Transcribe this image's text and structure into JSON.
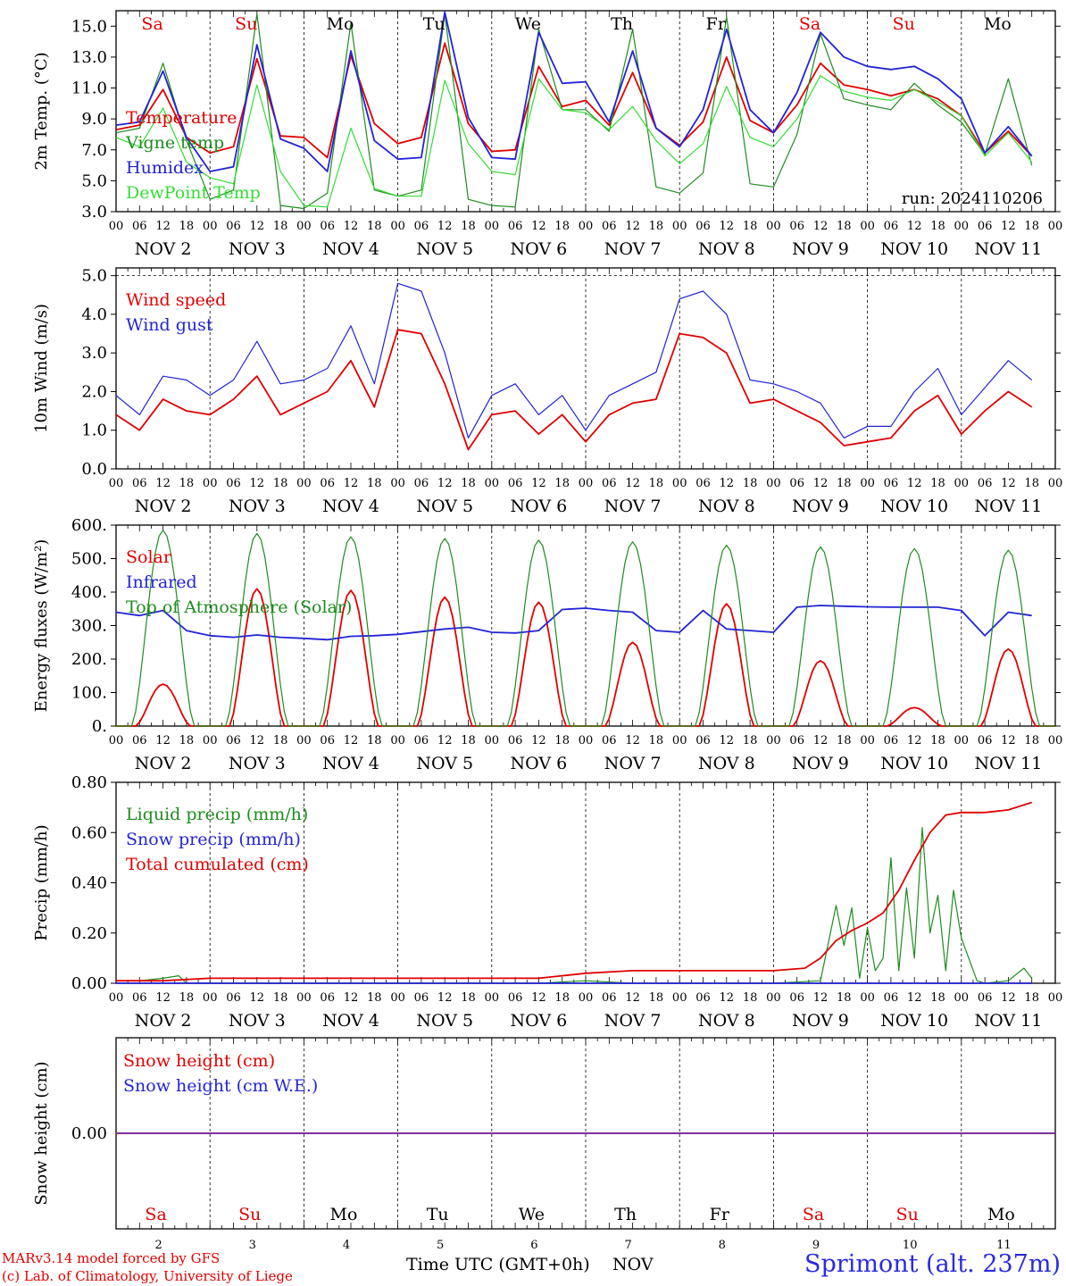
{
  "station": "Sprimont (alt. 237m)",
  "credits": [
    "MARv3.14 model forced by GFS",
    "(c) Lab. of Climatology, University of Liege"
  ],
  "run_label": "run: 2024110206",
  "x_axis": {
    "label": "Time UTC (GMT+0h)",
    "month": "NOV",
    "hour_ticks": [
      "00",
      "06",
      "12",
      "18"
    ],
    "day_labels": [
      "NOV  2",
      "NOV  3",
      "NOV  4",
      "NOV  5",
      "NOV  6",
      "NOV  7",
      "NOV  8",
      "NOV  9",
      "NOV 10",
      "NOV 11"
    ],
    "day_numbers": [
      "2",
      "3",
      "4",
      "5",
      "6",
      "7",
      "8",
      "9",
      "10",
      "11"
    ],
    "weekdays": [
      "Sa",
      "Su",
      "Mo",
      "Tu",
      "We",
      "Th",
      "Fr",
      "Sa",
      "Su",
      "Mo"
    ],
    "weekday_colors": [
      "#e00000",
      "#e00000",
      "#000000",
      "#000000",
      "#000000",
      "#000000",
      "#000000",
      "#e00000",
      "#e00000",
      "#000000"
    ]
  },
  "colors": {
    "red": "#e00000",
    "darkgreen": "#1e8c1e",
    "blue": "#2323d6",
    "lightgreen": "#33dd33",
    "purple": "#7a2a9a"
  },
  "chart_data": [
    {
      "type": "line",
      "ylabel": "2m Temp. (°C)",
      "ylim": [
        3,
        16
      ],
      "yticks": [
        "3.0",
        "5.0",
        "7.0",
        "9.0",
        "11.0",
        "13.0",
        "15.0"
      ],
      "x_unit": "hours since NOV 2 00 UTC",
      "series": [
        {
          "name": "Temperature",
          "color": "#e00000",
          "x": [
            0,
            6,
            12,
            18,
            24,
            30,
            36,
            42,
            48,
            54,
            60,
            66,
            72,
            78,
            84,
            90,
            96,
            102,
            108,
            114,
            120,
            126,
            132,
            138,
            144,
            150,
            156,
            162,
            168,
            174,
            180,
            186,
            192,
            198,
            204,
            210,
            216,
            222,
            228,
            234
          ],
          "y": [
            8.3,
            8.6,
            10.9,
            7.8,
            6.8,
            7.2,
            12.9,
            7.9,
            7.8,
            6.5,
            13.1,
            8.7,
            7.4,
            7.8,
            13.9,
            8.7,
            6.9,
            7.0,
            12.4,
            9.8,
            10.2,
            8.6,
            12.0,
            8.4,
            7.3,
            8.8,
            13.0,
            8.9,
            8.1,
            9.9,
            12.6,
            11.2,
            10.9,
            10.5,
            10.9,
            10.3,
            9.2,
            6.8,
            8.2,
            6.6
          ]
        },
        {
          "name": "Vigne temp",
          "color": "#1e8c1e",
          "x": [
            0,
            6,
            12,
            18,
            24,
            30,
            36,
            42,
            48,
            54,
            60,
            66,
            72,
            78,
            84,
            90,
            96,
            102,
            108,
            114,
            120,
            126,
            132,
            138,
            144,
            150,
            156,
            162,
            168,
            174,
            180,
            186,
            192,
            198,
            204,
            210,
            216,
            222,
            228,
            234
          ],
          "y": [
            8.1,
            8.4,
            12.6,
            7.6,
            3.8,
            4.4,
            15.8,
            3.4,
            3.2,
            4.2,
            15.2,
            4.4,
            4.0,
            4.4,
            15.8,
            3.8,
            3.4,
            3.3,
            14.8,
            9.6,
            9.6,
            8.2,
            14.8,
            4.6,
            4.2,
            5.5,
            15.6,
            4.8,
            4.6,
            8.0,
            14.5,
            10.3,
            9.9,
            9.6,
            11.3,
            9.9,
            8.8,
            6.7,
            11.6,
            6.0
          ]
        },
        {
          "name": "Humidex",
          "color": "#2323d6",
          "x": [
            0,
            6,
            12,
            18,
            24,
            30,
            36,
            42,
            48,
            54,
            60,
            66,
            72,
            78,
            84,
            90,
            96,
            102,
            108,
            114,
            120,
            126,
            132,
            138,
            144,
            150,
            156,
            162,
            168,
            174,
            180,
            186,
            192,
            198,
            204,
            210,
            216,
            222,
            228,
            234
          ],
          "y": [
            8.6,
            8.8,
            12.1,
            7.8,
            5.6,
            5.9,
            13.8,
            7.7,
            7.1,
            5.6,
            13.4,
            7.6,
            6.4,
            6.5,
            15.9,
            9.1,
            6.5,
            6.4,
            14.6,
            11.3,
            11.4,
            8.8,
            13.4,
            8.4,
            7.2,
            9.6,
            14.8,
            9.6,
            8.1,
            10.7,
            14.6,
            13.0,
            12.4,
            12.2,
            12.4,
            11.6,
            10.3,
            6.8,
            8.5,
            6.6
          ]
        },
        {
          "name": "DewPoint Temp",
          "color": "#33dd33",
          "x": [
            0,
            6,
            12,
            18,
            24,
            30,
            36,
            42,
            48,
            54,
            60,
            66,
            72,
            78,
            84,
            90,
            96,
            102,
            108,
            114,
            120,
            126,
            132,
            138,
            144,
            150,
            156,
            162,
            168,
            174,
            180,
            186,
            192,
            198,
            204,
            210,
            216,
            222,
            228,
            234
          ],
          "y": [
            7.8,
            7.2,
            9.7,
            6.2,
            5.2,
            4.8,
            11.2,
            5.6,
            3.4,
            3.3,
            8.4,
            4.5,
            4.0,
            4.0,
            11.5,
            7.4,
            5.6,
            5.4,
            11.6,
            9.6,
            9.4,
            8.3,
            9.8,
            7.6,
            6.1,
            7.4,
            11.1,
            7.8,
            7.2,
            9.0,
            11.8,
            10.8,
            10.4,
            10.2,
            10.9,
            10.1,
            9.2,
            6.6,
            8.1,
            6.2
          ]
        }
      ]
    },
    {
      "type": "line",
      "ylabel": "10m Wind (m/s)",
      "ylim": [
        0,
        5.2
      ],
      "yticks": [
        "0.0",
        "1.0",
        "2.0",
        "3.0",
        "4.0",
        "5.0"
      ],
      "x_unit": "hours since NOV 2 00 UTC",
      "series": [
        {
          "name": "Wind speed",
          "color": "#e00000",
          "x": [
            0,
            6,
            12,
            18,
            24,
            30,
            36,
            42,
            48,
            54,
            60,
            66,
            72,
            78,
            84,
            90,
            96,
            102,
            108,
            114,
            120,
            126,
            132,
            138,
            144,
            150,
            156,
            162,
            168,
            174,
            180,
            186,
            192,
            198,
            204,
            210,
            216,
            222,
            228,
            234
          ],
          "y": [
            1.4,
            1.0,
            1.8,
            1.5,
            1.4,
            1.8,
            2.4,
            1.4,
            1.7,
            2.0,
            2.8,
            1.6,
            3.6,
            3.5,
            2.2,
            0.5,
            1.4,
            1.5,
            0.9,
            1.4,
            0.7,
            1.4,
            1.7,
            1.8,
            3.5,
            3.4,
            3.0,
            1.7,
            1.8,
            1.5,
            1.2,
            0.6,
            0.7,
            0.8,
            1.5,
            1.9,
            0.9,
            1.5,
            2.0,
            1.6
          ]
        },
        {
          "name": "Wind gust",
          "color": "#2323d6",
          "x": [
            0,
            6,
            12,
            18,
            24,
            30,
            36,
            42,
            48,
            54,
            60,
            66,
            72,
            78,
            84,
            90,
            96,
            102,
            108,
            114,
            120,
            126,
            132,
            138,
            144,
            150,
            156,
            162,
            168,
            174,
            180,
            186,
            192,
            198,
            204,
            210,
            216,
            222,
            228,
            234
          ],
          "y": [
            1.9,
            1.4,
            2.4,
            2.3,
            1.9,
            2.3,
            3.3,
            2.2,
            2.3,
            2.6,
            3.7,
            2.2,
            4.8,
            4.6,
            3.0,
            0.8,
            1.9,
            2.2,
            1.4,
            1.9,
            1.0,
            1.9,
            2.2,
            2.5,
            4.4,
            4.6,
            4.0,
            2.3,
            2.2,
            2.0,
            1.7,
            0.8,
            1.1,
            1.1,
            2.0,
            2.6,
            1.4,
            2.1,
            2.8,
            2.3
          ]
        }
      ]
    },
    {
      "type": "line",
      "ylabel": "Energy fluxes (W/m²)",
      "ylim": [
        0,
        600
      ],
      "yticks": [
        "0.",
        "100.",
        "200.",
        "300.",
        "400.",
        "500.",
        "600."
      ],
      "x_unit": "hours since NOV 2 00 UTC",
      "series": [
        {
          "name": "Solar",
          "color": "#e00000",
          "days": [
            {
              "peak": 125
            },
            {
              "peak": 410
            },
            {
              "peak": 405
            },
            {
              "peak": 385
            },
            {
              "peak": 370
            },
            {
              "peak": 250
            },
            {
              "peak": 365
            },
            {
              "peak": 195
            },
            {
              "peak": 55
            },
            {
              "peak": 230
            }
          ]
        },
        {
          "name": "Infrared",
          "color": "#2323d6",
          "x": [
            0,
            6,
            12,
            18,
            24,
            30,
            36,
            42,
            48,
            54,
            60,
            66,
            72,
            78,
            84,
            90,
            96,
            102,
            108,
            114,
            120,
            126,
            132,
            138,
            144,
            150,
            156,
            162,
            168,
            174,
            180,
            186,
            192,
            198,
            204,
            210,
            216,
            222,
            228,
            234
          ],
          "y": [
            340,
            330,
            345,
            285,
            270,
            265,
            272,
            265,
            262,
            258,
            268,
            270,
            274,
            282,
            290,
            295,
            280,
            278,
            285,
            348,
            352,
            345,
            340,
            285,
            280,
            345,
            290,
            285,
            280,
            355,
            360,
            358,
            356,
            355,
            355,
            355,
            345,
            270,
            340,
            330
          ]
        },
        {
          "name": "Top of Atmosphere (Solar)",
          "color": "#1e8c1e",
          "days": [
            {
              "peak": 585
            },
            {
              "peak": 575
            },
            {
              "peak": 565
            },
            {
              "peak": 560
            },
            {
              "peak": 555
            },
            {
              "peak": 550
            },
            {
              "peak": 540
            },
            {
              "peak": 535
            },
            {
              "peak": 530
            },
            {
              "peak": 525
            }
          ]
        }
      ]
    },
    {
      "type": "line",
      "ylabel": "Precip (mm/h)",
      "ylim": [
        0,
        0.8
      ],
      "yticks": [
        "0.00",
        "0.20",
        "0.40",
        "0.60",
        "0.80"
      ],
      "x_unit": "hours since NOV 2 00 UTC",
      "series": [
        {
          "name": "Liquid precip (mm/h)",
          "color": "#1e8c1e",
          "x": [
            0,
            6,
            12,
            16,
            18,
            24,
            96,
            108,
            120,
            132,
            168,
            180,
            184,
            186,
            188,
            190,
            192,
            194,
            196,
            198,
            200,
            202,
            204,
            206,
            208,
            210,
            212,
            214,
            216,
            220,
            222,
            228,
            232,
            234
          ],
          "y": [
            0.01,
            0.01,
            0.02,
            0.03,
            0.0,
            0.0,
            0.0,
            0.0,
            0.01,
            0.0,
            0.0,
            0.01,
            0.31,
            0.15,
            0.3,
            0.02,
            0.22,
            0.05,
            0.1,
            0.5,
            0.05,
            0.38,
            0.1,
            0.62,
            0.2,
            0.35,
            0.05,
            0.37,
            0.18,
            0.01,
            0.0,
            0.01,
            0.06,
            0.02
          ]
        },
        {
          "name": "Snow precip (mm/h)",
          "color": "#2323d6",
          "x": [
            0,
            234
          ],
          "y": [
            0.0,
            0.0
          ]
        },
        {
          "name": "Total cumulated (cm)",
          "color": "#e00000",
          "x": [
            0,
            12,
            24,
            96,
            108,
            114,
            120,
            132,
            168,
            176,
            180,
            184,
            188,
            192,
            196,
            200,
            204,
            208,
            212,
            216,
            222,
            228,
            234
          ],
          "y": [
            0.01,
            0.01,
            0.02,
            0.02,
            0.02,
            0.03,
            0.04,
            0.05,
            0.05,
            0.06,
            0.1,
            0.17,
            0.21,
            0.24,
            0.28,
            0.37,
            0.49,
            0.6,
            0.67,
            0.68,
            0.68,
            0.69,
            0.72
          ]
        }
      ]
    },
    {
      "type": "line",
      "ylabel": "Snow height (cm)",
      "ylim": [
        -1,
        1
      ],
      "yticks": [
        "0.00"
      ],
      "x_unit": "hours since NOV 2 00 UTC",
      "series": [
        {
          "name": "Snow height (cm)",
          "color": "#e00000",
          "x": [
            0,
            240
          ],
          "y": [
            0,
            0
          ]
        },
        {
          "name": "Snow height (cm W.E.)",
          "color": "#2323d6",
          "x": [
            0,
            240
          ],
          "y": [
            0,
            0
          ]
        }
      ]
    }
  ]
}
